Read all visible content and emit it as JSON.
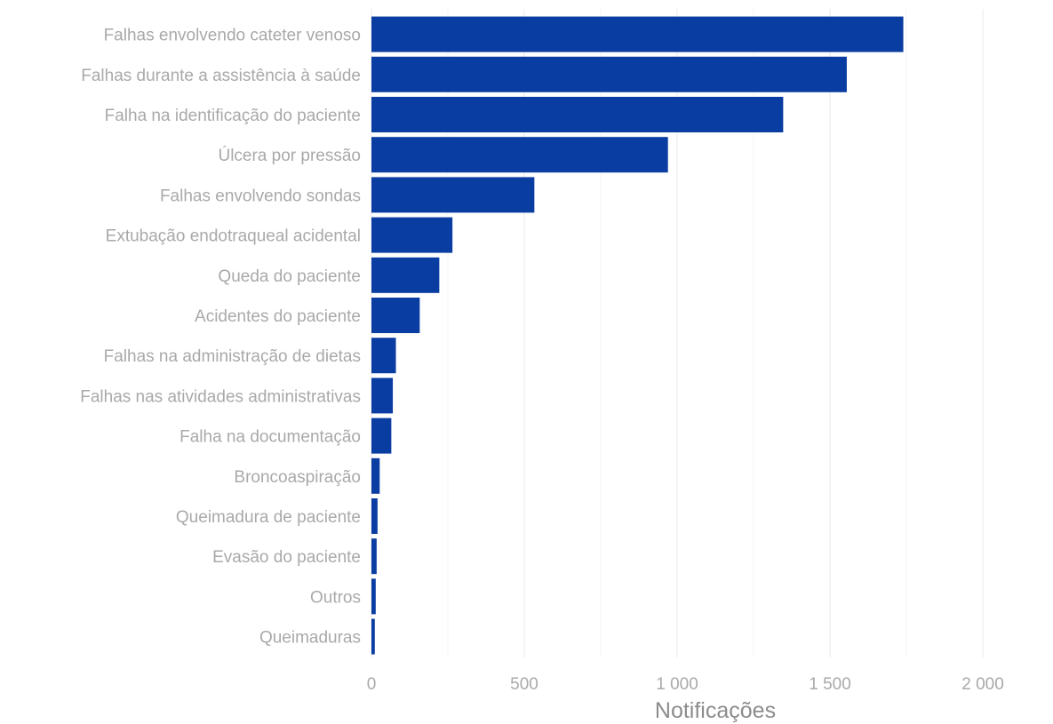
{
  "chart_data": {
    "type": "bar",
    "orientation": "horizontal",
    "categories": [
      "Falhas envolvendo cateter venoso",
      "Falhas durante a assistência à saúde",
      "Falha na identificação do paciente",
      "Úlcera por pressão",
      "Falhas envolvendo sondas",
      "Extubação endotraqueal acidental",
      "Queda do paciente",
      "Acidentes do paciente",
      "Falhas na administração de dietas",
      "Falhas nas atividades administrativas",
      "Falha na documentação",
      "Broncoaspiração",
      "Queimadura de paciente",
      "Evasão do paciente",
      "Outros",
      "Queimaduras"
    ],
    "values": [
      1740,
      1555,
      1347,
      970,
      533,
      265,
      222,
      158,
      80,
      70,
      65,
      27,
      20,
      17,
      14,
      11
    ],
    "xlabel": "Notificações",
    "xlim": [
      0,
      2000
    ],
    "x_ticks": [
      0,
      500,
      1000,
      1500,
      2000
    ],
    "x_tick_labels": [
      "0",
      "500",
      "1 000",
      "1 500",
      "2 000"
    ],
    "grid": "vertical",
    "bar_color": "#0a3da1"
  }
}
